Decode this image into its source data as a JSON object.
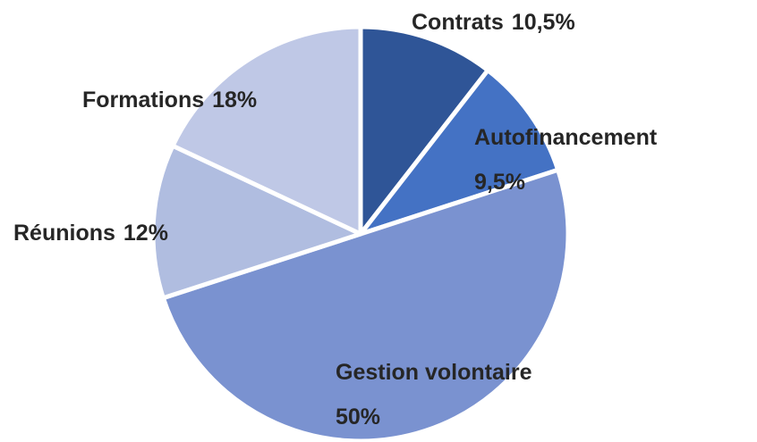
{
  "chart_data": {
    "type": "pie",
    "categories": [
      "Contrats",
      "Autofinancement",
      "Gestion volontaire",
      "Réunions",
      "Formations"
    ],
    "values": [
      10.5,
      9.5,
      50,
      12,
      18
    ],
    "value_labels": [
      "10,5%",
      "9,5%",
      "50%",
      "12%",
      "18%"
    ],
    "colors": [
      "#2f5597",
      "#4472c4",
      "#7a92d0",
      "#b0bde0",
      "#bfc8e6"
    ],
    "start_angle": 0,
    "direction": "clockwise"
  }
}
